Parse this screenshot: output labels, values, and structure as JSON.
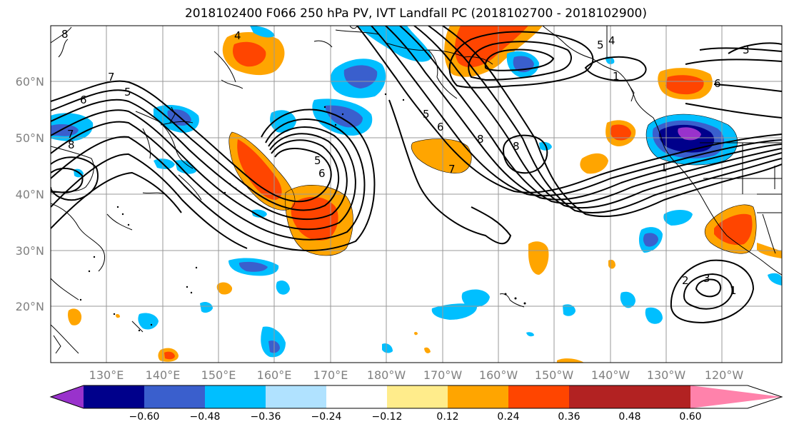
{
  "title": "2018102400 F066 250 hPa PV, IVT Landfall PC (2018102700 - 2018102900)",
  "axes": {
    "lat_labels": [
      "60°N",
      "50°N",
      "40°N",
      "30°N",
      "20°N"
    ],
    "lon_labels": [
      "130°E",
      "140°E",
      "150°E",
      "160°E",
      "170°E",
      "180°W",
      "170°W",
      "160°W",
      "150°W",
      "140°W",
      "130°W",
      "120°W"
    ]
  },
  "colorbar": {
    "tick_labels": [
      "−0.60",
      "−0.48",
      "−0.36",
      "−0.24",
      "−0.12",
      "0.12",
      "0.24",
      "0.36",
      "0.48",
      "0.60"
    ],
    "colors": [
      "#9932cc",
      "#00008b",
      "#3a5fcd",
      "#00bfff",
      "#b0e2ff",
      "#ffffff",
      "#ffec8b",
      "#ffa500",
      "#ff4500",
      "#b22222",
      "#ff82ab"
    ]
  },
  "contour_labels": [
    {
      "text": "8"
    },
    {
      "text": "7"
    },
    {
      "text": "6"
    },
    {
      "text": "5"
    },
    {
      "text": "4"
    },
    {
      "text": "5"
    },
    {
      "text": "6"
    },
    {
      "text": "5"
    },
    {
      "text": "6"
    },
    {
      "text": "7"
    },
    {
      "text": "8"
    },
    {
      "text": "8"
    },
    {
      "text": "5"
    },
    {
      "text": "4"
    },
    {
      "text": "3"
    },
    {
      "text": "6"
    },
    {
      "text": "1"
    },
    {
      "text": "2"
    },
    {
      "text": "3"
    },
    {
      "text": "1"
    },
    {
      "text": "1"
    },
    {
      "text": "7"
    },
    {
      "text": "8"
    }
  ]
}
